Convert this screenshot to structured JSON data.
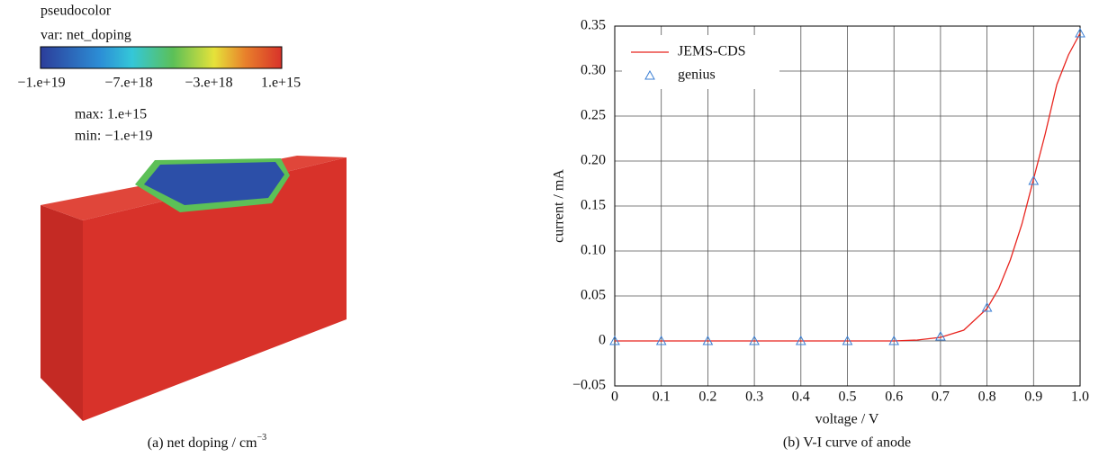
{
  "figure": {
    "legend_title": "pseudocolor",
    "legend_var": "var: net_doping",
    "colorbar_labels": [
      "−1.e+19",
      "−7.e+18",
      "−3.e+18",
      "1.e+15"
    ],
    "max_text": "max: 1.e+15",
    "min_text": "min: −1.e+19",
    "caption_text": "(a) net doping / cm",
    "caption_sup": "−3"
  },
  "chart_data": {
    "type": "line",
    "xlabel": "voltage / V",
    "ylabel": "current / mA",
    "caption": "(b) V-I curve of anode",
    "xlim": [
      0,
      1
    ],
    "ylim": [
      -0.05,
      0.35
    ],
    "xticks": [
      0,
      0.1,
      0.2,
      0.3,
      0.4,
      0.5,
      0.6,
      0.7,
      0.8,
      0.9,
      {
        "value": 1,
        "label": "1.0"
      }
    ],
    "yticks": [
      {
        "value": -0.05,
        "label": "−0.05"
      },
      0,
      0.05,
      {
        "value": 0.1,
        "label": "0.10"
      },
      0.15,
      {
        "value": 0.2,
        "label": "0.20"
      },
      0.25,
      {
        "value": 0.3,
        "label": "0.30"
      },
      0.35
    ],
    "grid": true,
    "legend": "upper left",
    "series": [
      {
        "name": "JEMS-CDS",
        "color": "#e8251f",
        "style": "line",
        "x": [
          0,
          0.1,
          0.2,
          0.3,
          0.4,
          0.5,
          0.6,
          0.65,
          0.7,
          0.75,
          0.8,
          0.825,
          0.85,
          0.875,
          0.9,
          0.925,
          0.95,
          0.975,
          1
        ],
        "values": [
          0,
          0,
          0,
          0,
          0,
          0,
          0,
          0.001,
          0.004,
          0.012,
          0.036,
          0.058,
          0.09,
          0.13,
          0.18,
          0.23,
          0.285,
          0.318,
          0.342
        ]
      },
      {
        "name": "genius",
        "color": "#3b7fd4",
        "style": "triangle",
        "x": [
          0,
          0.1,
          0.2,
          0.3,
          0.4,
          0.5,
          0.6,
          0.7,
          0.8,
          0.9,
          1
        ],
        "values": [
          0,
          0,
          0,
          0,
          0,
          0,
          0,
          0.005,
          0.037,
          0.178,
          0.342
        ]
      }
    ]
  }
}
